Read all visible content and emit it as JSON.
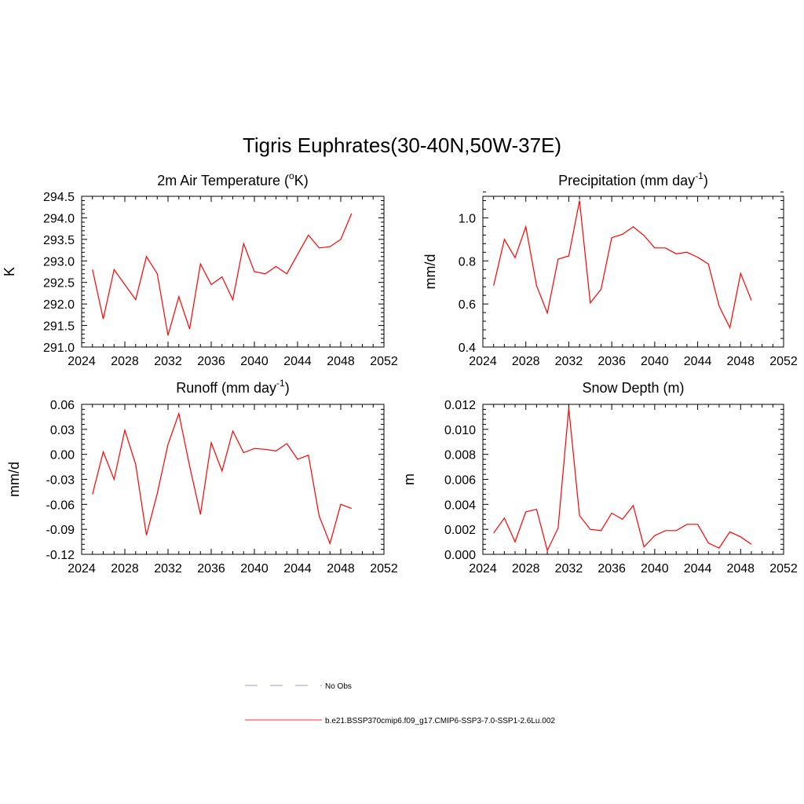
{
  "title": "Tigris Euphrates(30-40N,50W-37E)",
  "legend": [
    {
      "label": "No Obs",
      "color": "#9999dd",
      "dashed": true
    },
    {
      "label": "b.e21.BSSP370cmip6.f09_g17.CMIP6-SSP3-7.0-SSP1-2.6Lu.002",
      "color": "#ff3333",
      "dashed": false
    }
  ],
  "chart_data": [
    {
      "type": "line",
      "title": "2m Air Temperature (",
      "title_sup": "o",
      "title_end": "K)",
      "ylabel": "K",
      "xlim": [
        2024,
        2052
      ],
      "xticks": [
        "2024",
        "2028",
        "2032",
        "2036",
        "2040",
        "2044",
        "2048",
        "2052"
      ],
      "ylim": [
        291.0,
        294.5
      ],
      "yticks": [
        "291.0",
        "291.5",
        "292.0",
        "292.5",
        "293.0",
        "293.5",
        "294.0",
        "294.5"
      ],
      "series": [
        {
          "color": "#ff0000",
          "x": [
            2025,
            2026,
            2027,
            2028,
            2029,
            2030,
            2031,
            2032,
            2033,
            2034,
            2035,
            2036,
            2037,
            2038,
            2039,
            2040,
            2041,
            2042,
            2043,
            2044,
            2045,
            2046,
            2047,
            2048,
            2049
          ],
          "y": [
            292.8,
            291.65,
            292.8,
            292.45,
            292.1,
            293.1,
            292.7,
            291.27,
            292.17,
            291.42,
            292.93,
            292.45,
            292.63,
            292.1,
            293.4,
            292.75,
            292.7,
            292.87,
            292.7,
            293.15,
            293.6,
            293.3,
            293.33,
            293.5,
            294.1
          ]
        }
      ]
    },
    {
      "type": "line",
      "title": "Precipitation (mm day",
      "title_sup": "-1",
      "title_end": ")",
      "ylabel": "mm/d",
      "xlim": [
        2024,
        2052
      ],
      "xticks": [
        "2024",
        "2028",
        "2032",
        "2036",
        "2040",
        "2044",
        "2048",
        "2052"
      ],
      "ylim": [
        0.4,
        1.1
      ],
      "yticks": [
        "0.4",
        "0.6",
        "0.8",
        "1.0"
      ],
      "series": [
        {
          "color": "#ff0000",
          "x": [
            2025,
            2026,
            2027,
            2028,
            2029,
            2030,
            2031,
            2032,
            2033,
            2034,
            2035,
            2036,
            2037,
            2038,
            2039,
            2040,
            2041,
            2042,
            2043,
            2044,
            2045,
            2046,
            2047,
            2048,
            2049
          ],
          "y": [
            0.685,
            0.9,
            0.815,
            0.958,
            0.685,
            0.558,
            0.808,
            0.823,
            1.08,
            0.605,
            0.668,
            0.908,
            0.923,
            0.958,
            0.918,
            0.86,
            0.86,
            0.833,
            0.84,
            0.817,
            0.785,
            0.59,
            0.49,
            0.742,
            0.617
          ]
        }
      ]
    },
    {
      "type": "line",
      "title": "Runoff (mm day",
      "title_sup": "-1",
      "title_end": ")",
      "ylabel": "mm/d",
      "xlim": [
        2024,
        2052
      ],
      "xticks": [
        "2024",
        "2028",
        "2032",
        "2036",
        "2040",
        "2044",
        "2048",
        "2052"
      ],
      "ylim": [
        -0.12,
        0.06
      ],
      "yticks": [
        "-0.12",
        "-0.09",
        "-0.06",
        "-0.03",
        "0.00",
        "0.03",
        "0.06"
      ],
      "series": [
        {
          "color": "#ff0000",
          "x": [
            2025,
            2026,
            2027,
            2028,
            2029,
            2030,
            2031,
            2032,
            2033,
            2034,
            2035,
            2036,
            2037,
            2038,
            2039,
            2040,
            2041,
            2042,
            2043,
            2044,
            2045,
            2046,
            2047,
            2048,
            2049
          ],
          "y": [
            -0.048,
            0.003,
            -0.03,
            0.029,
            -0.012,
            -0.097,
            -0.047,
            0.012,
            0.049,
            -0.014,
            -0.072,
            0.014,
            -0.02,
            0.028,
            0.002,
            0.007,
            0.006,
            0.004,
            0.013,
            -0.006,
            -0.001,
            -0.074,
            -0.107,
            -0.06,
            -0.065
          ]
        }
      ]
    },
    {
      "type": "line",
      "title": "Snow Depth (m)",
      "title_sup": "",
      "title_end": "",
      "ylabel": "m",
      "xlim": [
        2024,
        2052
      ],
      "xticks": [
        "2024",
        "2028",
        "2032",
        "2036",
        "2040",
        "2044",
        "2048",
        "2052"
      ],
      "ylim": [
        0.0,
        0.012
      ],
      "yticks": [
        "0.000",
        "0.002",
        "0.004",
        "0.006",
        "0.008",
        "0.010",
        "0.012"
      ],
      "series": [
        {
          "color": "#ff0000",
          "x": [
            2025,
            2026,
            2027,
            2028,
            2029,
            2030,
            2031,
            2032,
            2033,
            2034,
            2035,
            2036,
            2037,
            2038,
            2039,
            2040,
            2041,
            2042,
            2043,
            2044,
            2045,
            2046,
            2047,
            2048,
            2049
          ],
          "y": [
            0.0017,
            0.0029,
            0.001,
            0.0034,
            0.0036,
            0.0003,
            0.0021,
            0.0117,
            0.0031,
            0.002,
            0.0019,
            0.0033,
            0.0028,
            0.0039,
            0.0006,
            0.0015,
            0.0019,
            0.0019,
            0.0024,
            0.0024,
            0.0009,
            0.0005,
            0.0018,
            0.0014,
            0.0008
          ]
        }
      ]
    }
  ]
}
